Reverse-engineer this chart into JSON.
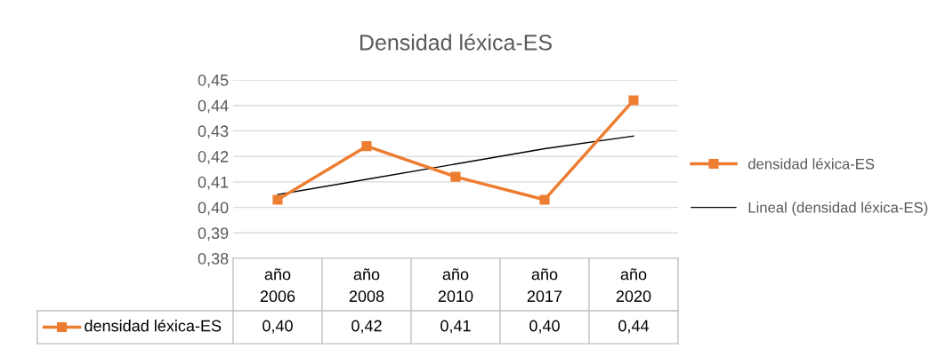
{
  "chart_data": {
    "type": "line",
    "title": "Densidad léxica-ES",
    "categories": [
      "año\n2006",
      "año\n2008",
      "año\n2010",
      "año\n2017",
      "año\n2020"
    ],
    "series": [
      {
        "name": "densidad léxica-ES",
        "color": "#ed7d31",
        "values": [
          0.403,
          0.424,
          0.412,
          0.403,
          0.442
        ],
        "marker": "square",
        "value_labels": [
          "0,40",
          "0,42",
          "0,41",
          "0,40",
          "0,44"
        ]
      },
      {
        "name": "Lineal (densidad léxica-ES)",
        "color": "#000000",
        "type": "line",
        "marker": "none",
        "values": [
          0.405,
          0.411,
          0.417,
          0.423,
          0.428
        ]
      }
    ],
    "ylim": [
      0.38,
      0.45
    ],
    "yticks": [
      {
        "value": 0.38,
        "label": "0,38"
      },
      {
        "value": 0.39,
        "label": "0,39"
      },
      {
        "value": 0.4,
        "label": "0,40"
      },
      {
        "value": 0.41,
        "label": "0,41"
      },
      {
        "value": 0.42,
        "label": "0,42"
      },
      {
        "value": 0.43,
        "label": "0,43"
      },
      {
        "value": 0.44,
        "label": "0,44"
      },
      {
        "value": 0.45,
        "label": "0,45"
      }
    ],
    "grid": "y",
    "legend": "right"
  }
}
